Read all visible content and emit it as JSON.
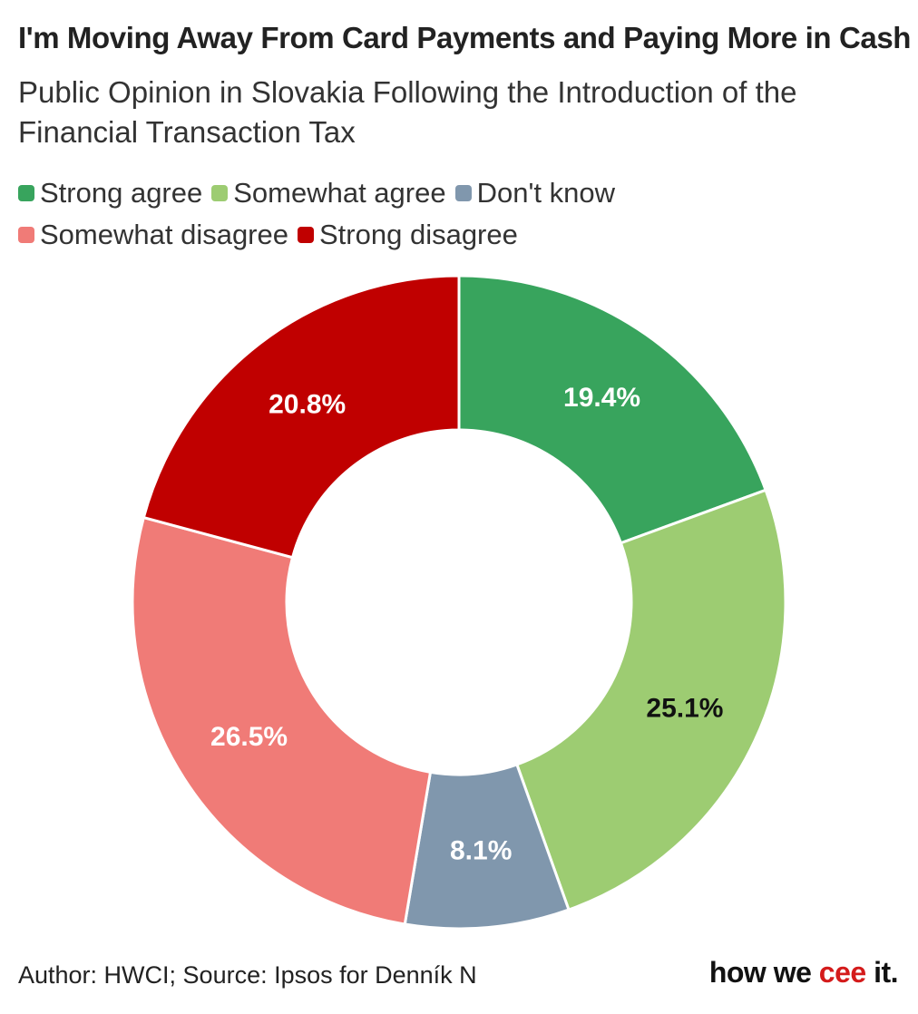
{
  "header": {
    "title": "I'm Moving Away From Card Payments and Paying More in Cash",
    "subtitle": "Public Opinion in Slovakia Following the Introduction of the Financial Transaction Tax"
  },
  "footer": {
    "source": "Author: HWCI; Source: Ipsos for Denník N",
    "logo_part1": "how we ",
    "logo_part2": "cee",
    "logo_part3": " it."
  },
  "colors": {
    "strong_agree": "#38a45d",
    "somewhat_agree": "#9dcc72",
    "dont_know": "#8097ad",
    "somewhat_disagree": "#f07b77",
    "strong_disagree": "#c00000",
    "logo_accent": "#d41b1b"
  },
  "chart_data": {
    "type": "pie",
    "donut": true,
    "legend_position": "top-left",
    "categories": [
      "Strong agree",
      "Somewhat agree",
      "Don't know",
      "Somewhat disagree",
      "Strong disagree"
    ],
    "values": [
      19.4,
      25.1,
      8.1,
      26.5,
      20.8
    ],
    "labels": [
      "19.4%",
      "25.1%",
      "8.1%",
      "26.5%",
      "20.8%"
    ],
    "colors": [
      "#38a45d",
      "#9dcc72",
      "#8097ad",
      "#f07b77",
      "#c00000"
    ],
    "label_colors": [
      "#ffffff",
      "#111111",
      "#ffffff",
      "#ffffff",
      "#ffffff"
    ],
    "title": "I'm Moving Away From Card Payments and Paying More in Cash",
    "subtitle": "Public Opinion in Slovakia Following the Introduction of the Financial Transaction Tax"
  }
}
